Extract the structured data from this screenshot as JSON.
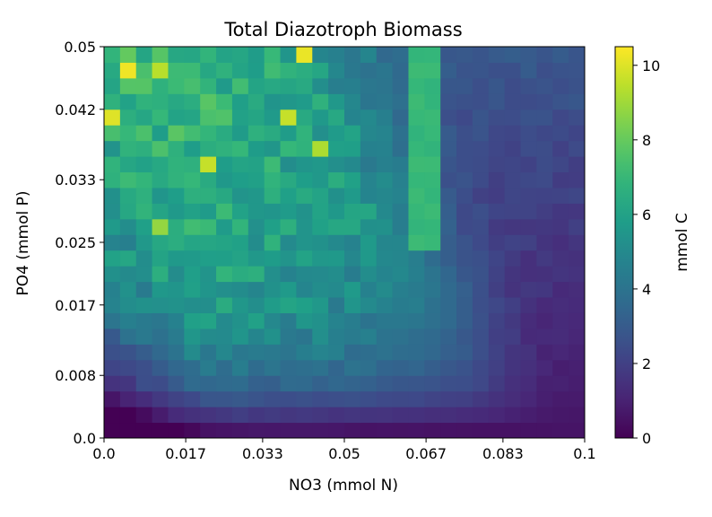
{
  "chart_data": {
    "type": "heatmap",
    "title": "Total Diazotroph Biomass",
    "xlabel": "NO3 (mmol N)",
    "ylabel": "PO4 (mmol P)",
    "xlim": [
      0.0,
      0.1
    ],
    "ylim": [
      0.0,
      0.05
    ],
    "x_ticks": [
      0.0,
      0.017,
      0.033,
      0.05,
      0.067,
      0.083,
      0.1
    ],
    "x_tick_labels": [
      "0.0",
      "0.017",
      "0.033",
      "0.05",
      "0.067",
      "0.083",
      "0.1"
    ],
    "y_ticks": [
      0.0,
      0.008,
      0.017,
      0.025,
      0.033,
      0.042,
      0.05
    ],
    "y_tick_labels": [
      "0.0",
      "0.008",
      "0.017",
      "0.025",
      "0.033",
      "0.042",
      "0.05"
    ],
    "grid": [
      30,
      25
    ],
    "colormap": "viridis",
    "colorbar": {
      "label": "mmol C",
      "range": [
        0,
        10.5
      ],
      "ticks": [
        0,
        2,
        4,
        6,
        8,
        10
      ],
      "tick_labels": [
        "0",
        "2",
        "4",
        "6",
        "8",
        "10"
      ]
    },
    "hotspots": [
      {
        "x": 0.0055,
        "y": 0.0475,
        "value": 10.3
      },
      {
        "x": 0.042,
        "y": 0.0495,
        "value": 10.2
      },
      {
        "x": 0.0015,
        "y": 0.0405,
        "value": 10.0
      },
      {
        "x": 0.0225,
        "y": 0.0355,
        "value": 9.6
      },
      {
        "x": 0.0385,
        "y": 0.0405,
        "value": 9.6
      },
      {
        "x": 0.0115,
        "y": 0.0465,
        "value": 9.4
      },
      {
        "x": 0.0445,
        "y": 0.0365,
        "value": 9.2
      },
      {
        "x": 0.0115,
        "y": 0.0275,
        "value": 8.8
      }
    ],
    "ridge": {
      "x_range": [
        0.063,
        0.069
      ],
      "y_min": 0.025,
      "value": 7.0
    }
  }
}
